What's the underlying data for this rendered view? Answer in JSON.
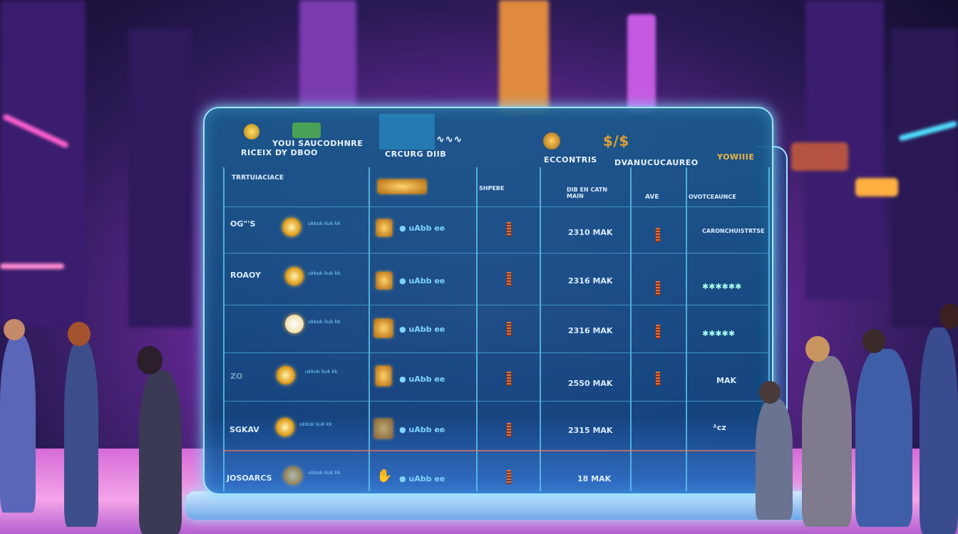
{
  "screen": {
    "header": {
      "title_line1": "YOUI SAUCODHNRE",
      "title_line2": "RICEIX DY DBOO",
      "center_label": "CRCURG DIIB",
      "label_3": "ECCONTRIS",
      "label_4": "DVANUCUCAUREO",
      "label_5": "YOWIIIE",
      "wave_icon": "wave-icon"
    },
    "columns": [
      "TRRTUIACIACE",
      "",
      "SHPEBE",
      "DIB EN CATN MAIN",
      "AVE",
      "OVOTCEAUNCE"
    ],
    "rows": [
      {
        "name": "OG\"'S",
        "desc": "ukkuk kuk kk",
        "code": "● uAbb ee",
        "value": "2310 MAK",
        "extra": "CARONCHUISTRTSE"
      },
      {
        "name": "ROAOY",
        "desc": "ukkuk kuk kk",
        "code": "● uAbb ee",
        "value": "2316 MAK",
        "extra": "✱✱✱✱✱✱"
      },
      {
        "name": "",
        "desc": "ukkuk kuk kk",
        "code": "● uAbb ee",
        "value": "2316 MAK",
        "extra": "✱✱✱✱✱"
      },
      {
        "name": "ZO",
        "desc": "ukkuk kuk kk",
        "code": "● uAbb ee",
        "value": "2550 MAK",
        "extra": "MAK"
      },
      {
        "name": "SGKAV",
        "desc": "ukkuk kuk kk",
        "code": "● uAbb ee",
        "value": "2315 MAK",
        "extra": "ᐞcz"
      },
      {
        "name": "JOSOARCS",
        "desc": "ukkuk kuk kk",
        "code": "● uAbb ee",
        "value": "18 MAK",
        "extra": ""
      }
    ]
  },
  "colors": {
    "panel": "#1a5a8c",
    "border": "#9ee6ff",
    "gold": "#f2b640",
    "neon_pink": "#ff5fd0",
    "neon_cyan": "#4fe0ff"
  }
}
